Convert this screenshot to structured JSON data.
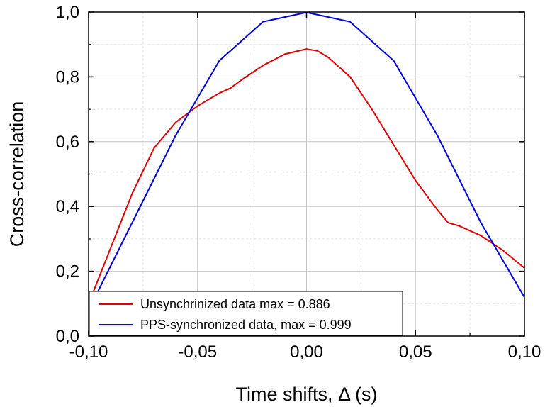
{
  "chart_data": {
    "type": "line",
    "title": "",
    "xlabel": "Time shifts, Δ (s)",
    "ylabel": "Cross-correlation",
    "xlim": [
      -0.1,
      0.1
    ],
    "ylim": [
      0.0,
      1.0
    ],
    "x_ticks": [
      -0.1,
      -0.05,
      0.0,
      0.05,
      0.1
    ],
    "x_tick_labels": [
      "-0,10",
      "-0,05",
      "0,00",
      "0,05",
      "0,10"
    ],
    "y_ticks": [
      0.0,
      0.2,
      0.4,
      0.6,
      0.8,
      1.0
    ],
    "y_tick_labels": [
      "0,0",
      "0,2",
      "0,4",
      "0,6",
      "0,8",
      "1,0"
    ],
    "grid": true,
    "legend_position": "bottom-left",
    "series": [
      {
        "name": "Unsynchrinized data max = 0.886",
        "color": "#e00000",
        "x": [
          -0.1,
          -0.09,
          -0.08,
          -0.07,
          -0.06,
          -0.05,
          -0.04,
          -0.035,
          -0.03,
          -0.02,
          -0.01,
          0.0,
          0.005,
          0.01,
          0.02,
          0.03,
          0.04,
          0.05,
          0.06,
          0.065,
          0.07,
          0.08,
          0.09,
          0.1
        ],
        "y": [
          0.1,
          0.27,
          0.44,
          0.58,
          0.66,
          0.71,
          0.75,
          0.765,
          0.79,
          0.835,
          0.87,
          0.886,
          0.88,
          0.86,
          0.8,
          0.7,
          0.59,
          0.48,
          0.39,
          0.35,
          0.34,
          0.31,
          0.265,
          0.21
        ]
      },
      {
        "name": "PPS-synchronized data, max = 0.999",
        "color": "#0000e0",
        "x": [
          -0.1,
          -0.08,
          -0.06,
          -0.04,
          -0.02,
          0.0,
          0.02,
          0.04,
          0.06,
          0.08,
          0.1
        ],
        "y": [
          0.08,
          0.35,
          0.62,
          0.85,
          0.97,
          0.999,
          0.97,
          0.85,
          0.62,
          0.35,
          0.12
        ]
      }
    ]
  }
}
